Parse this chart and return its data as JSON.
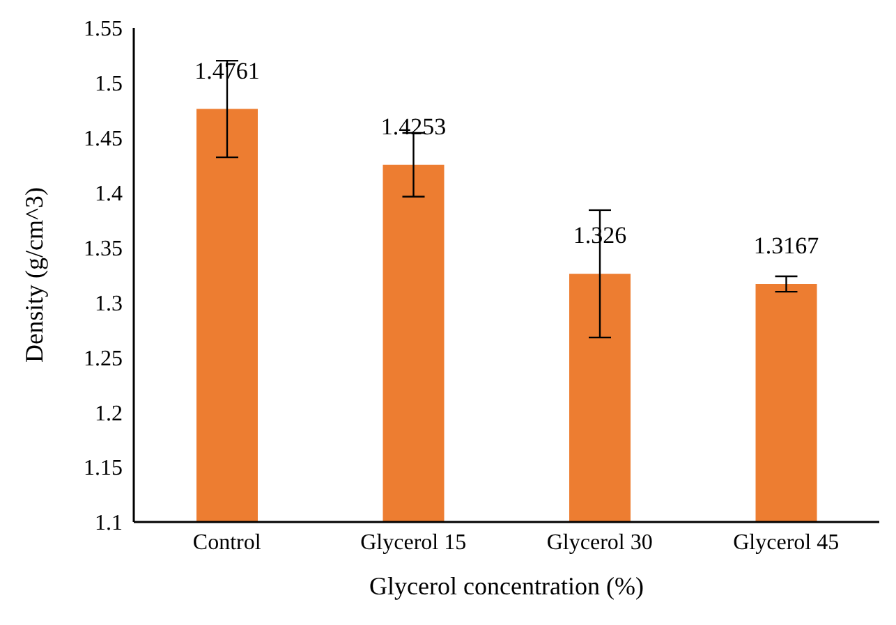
{
  "chart_data": {
    "type": "bar",
    "xlabel": "Glycerol concentration (%)",
    "ylabel": "Density (g/cm^3)",
    "categories": [
      "Control",
      "Glycerol 15",
      "Glycerol 30",
      "Glycerol 45"
    ],
    "values": [
      1.4761,
      1.4253,
      1.326,
      1.3167
    ],
    "errors": [
      0.044,
      0.029,
      0.058,
      0.007
    ],
    "color": "#ed7d31",
    "data_labels": true,
    "ylim": [
      1.1,
      1.55
    ],
    "yticks": [
      1.1,
      1.15,
      1.2,
      1.25,
      1.3,
      1.35,
      1.4,
      1.45,
      1.5,
      1.55
    ],
    "grid": false,
    "legend": false
  }
}
